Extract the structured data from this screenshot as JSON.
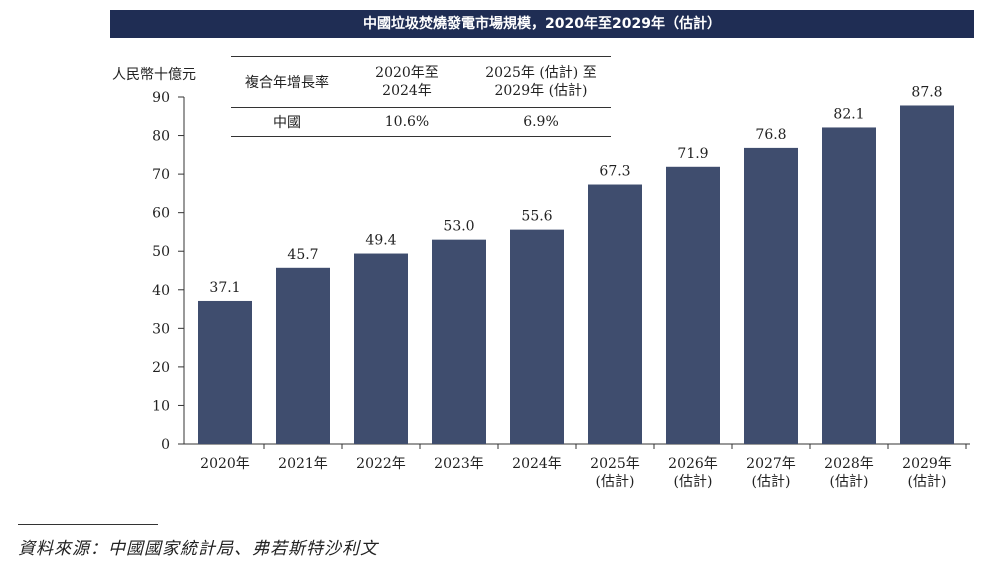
{
  "title": "中國垃圾焚燒發電市場規模，2020年至2029年（估計）",
  "unit_label": "人民幣十億元",
  "cagr_table": {
    "headers": [
      "複合年增長率",
      "2020年至\n2024年",
      "2025年 (估計) 至\n2029年 (估計)"
    ],
    "rows": [
      {
        "label": "中國",
        "values": [
          "10.6%",
          "6.9%"
        ]
      }
    ]
  },
  "source_text": "資料來源：中國國家統計局、弗若斯特沙利文",
  "chart_data": {
    "type": "bar",
    "title": "中國垃圾焚燒發電市場規模，2020年至2029年（估計）",
    "ylabel": "人民幣十億元",
    "xlabel": "",
    "ylim": [
      0,
      90
    ],
    "yticks": [
      0,
      10,
      20,
      30,
      40,
      50,
      60,
      70,
      80,
      90
    ],
    "grid": false,
    "bar_color": "#3f4d6e",
    "categories": [
      [
        "2020年"
      ],
      [
        "2021年"
      ],
      [
        "2022年"
      ],
      [
        "2023年"
      ],
      [
        "2024年"
      ],
      [
        "2025年",
        "(估計)"
      ],
      [
        "2026年",
        "(估計)"
      ],
      [
        "2027年",
        "(估計)"
      ],
      [
        "2028年",
        "(估計)"
      ],
      [
        "2029年",
        "(估計)"
      ]
    ],
    "values": [
      37.1,
      45.7,
      49.4,
      53.0,
      55.6,
      67.3,
      71.9,
      76.8,
      82.1,
      87.8
    ],
    "value_labels": [
      "37.1",
      "45.7",
      "49.4",
      "53.0",
      "55.6",
      "67.3",
      "71.9",
      "76.8",
      "82.1",
      "87.8"
    ]
  }
}
